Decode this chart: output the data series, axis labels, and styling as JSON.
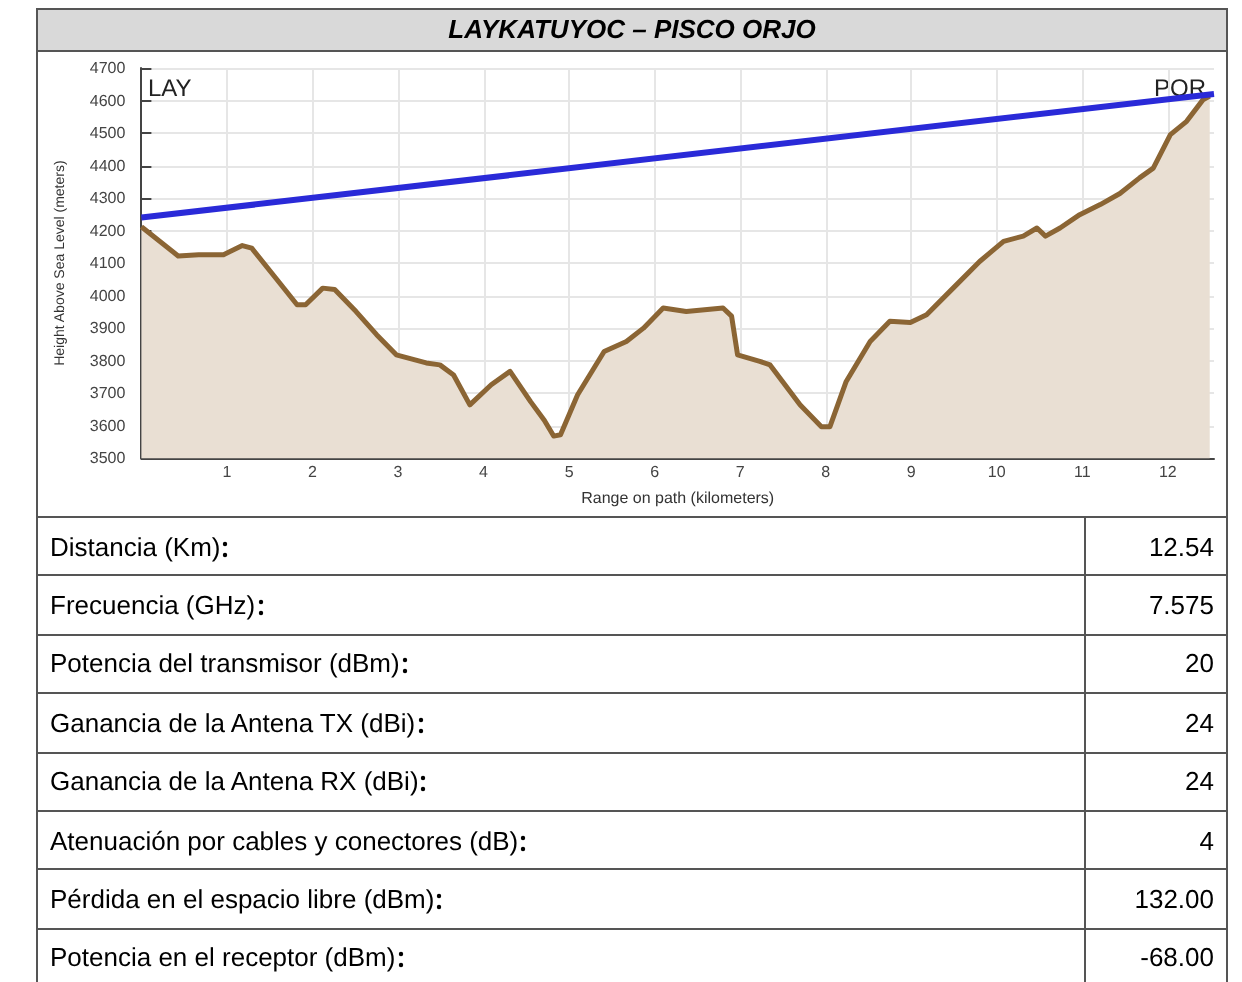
{
  "chart_data": [
    {
      "type": "area",
      "title": "LAYKATUYOC – PISCO ORJO",
      "xlabel": "Range on path (kilometers)",
      "ylabel": "Height Above Sea Level (meters)",
      "annotations": [
        "LAY",
        "POR"
      ],
      "xlim": [
        0,
        12.54
      ],
      "xticks": [
        1,
        2,
        3,
        4,
        5,
        6,
        7,
        8,
        9,
        10,
        11,
        12
      ],
      "ylim": [
        3500,
        4700
      ],
      "yticks": [
        3500,
        3600,
        3700,
        3800,
        3900,
        4000,
        4100,
        4200,
        4300,
        4400,
        4500,
        4600,
        4700
      ],
      "grid": true,
      "marker": "none",
      "series": [
        {
          "type": "area",
          "color": "#8b6534",
          "x": [
            0,
            0.43,
            0.67,
            0.96,
            1.18,
            1.29,
            1.57,
            1.82,
            1.92,
            2.12,
            2.26,
            2.51,
            2.75,
            2.98,
            3.33,
            3.49,
            3.65,
            3.84,
            4.09,
            4.31,
            4.55,
            4.71,
            4.82,
            4.9,
            5.1,
            5.41,
            5.67,
            5.87,
            6.1,
            6.37,
            6.8,
            6.9,
            6.97,
            7.23,
            7.35,
            7.7,
            7.95,
            8.05,
            8.24,
            8.52,
            8.75,
            8.99,
            9.18,
            9.49,
            9.8,
            10.08,
            10.31,
            10.47,
            10.57,
            10.74,
            10.97,
            11.21,
            11.44,
            11.67,
            11.83,
            12.03,
            12.22,
            12.41,
            12.49
          ],
          "values": [
            4212,
            4122,
            4126,
            4126,
            4154,
            4146,
            4054,
            3972,
            3972,
            4023,
            4019,
            3951,
            3880,
            3818,
            3793,
            3787,
            3756,
            3664,
            3726,
            3767,
            3674,
            3617,
            3568,
            3572,
            3695,
            3828,
            3859,
            3900,
            3962,
            3951,
            3962,
            3937,
            3818,
            3798,
            3787,
            3664,
            3597,
            3597,
            3736,
            3859,
            3921,
            3917,
            3941,
            4023,
            4105,
            4167,
            4183,
            4208,
            4183,
            4208,
            4249,
            4280,
            4314,
            4362,
            4392,
            4495,
            4536,
            4602,
            4614
          ]
        },
        {
          "type": "line",
          "color": "#2a2ad8",
          "x": [
            0,
            12.54
          ],
          "values": [
            4240,
            4620
          ]
        }
      ]
    },
    {
      "type": "other",
      "categories": [
        "Distancia (Km)",
        "Frecuencia (GHz)",
        "Potencia del transmisor (dBm)",
        "Ganancia de la Antena TX (dBi)",
        "Ganancia de la Antena RX (dBi)",
        "Atenuación por cables y conectores (dB)",
        "Pérdida en el espacio libre (dBm)",
        "Potencia en el receptor (dBm)"
      ],
      "value_labels": [
        "12.54",
        "7.575",
        "20",
        "24",
        "24",
        "4",
        "132.00",
        "-68.00"
      ]
    }
  ]
}
